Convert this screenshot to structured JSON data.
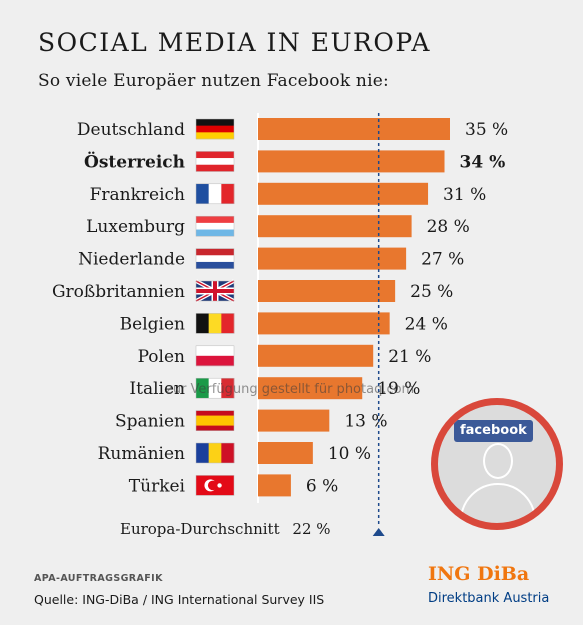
{
  "header": {
    "title": "SOCIAL MEDIA IN EUROPA",
    "subtitle": "So viele Europäer nutzen Facebook nie:"
  },
  "chart_data": {
    "type": "bar",
    "orientation": "horizontal",
    "title": "SOCIAL MEDIA IN EUROPA",
    "subtitle": "So viele Europäer nutzen Facebook nie:",
    "unit": "%",
    "xlim": [
      0,
      36
    ],
    "categories": [
      "Deutschland",
      "Österreich",
      "Frankreich",
      "Luxemburg",
      "Niederlande",
      "Großbritannien",
      "Belgien",
      "Polen",
      "Italien",
      "Spanien",
      "Rumänien",
      "Türkei"
    ],
    "values": [
      35,
      34,
      31,
      28,
      27,
      25,
      24,
      21,
      19,
      13,
      10,
      6
    ],
    "value_labels": [
      "35 %",
      "34 %",
      "31 %",
      "28 %",
      "27 %",
      "25 %",
      "24 %",
      "21 %",
      "19 %",
      "13 %",
      "10 %",
      "6 %"
    ],
    "flags": [
      "germany-flag",
      "austria-flag",
      "france-flag",
      "luxembourg-flag",
      "netherlands-flag",
      "uk-flag",
      "belgium-flag",
      "poland-flag",
      "italy-flag",
      "spain-flag",
      "romania-flag",
      "turkey-flag"
    ],
    "highlight": "Österreich",
    "reference_line": {
      "label": "Europa-Durchschnitt",
      "value": 22,
      "value_label": "22 %"
    },
    "bar_color": "#e8772e",
    "grid": false
  },
  "footer": {
    "graphic_tag": "APA-AUFTRAGSGRAFIK",
    "source": "Quelle: ING-DiBa / ING International Survey IIS",
    "logo_main": "ING DiBa",
    "logo_sub": "Direktbank Austria"
  },
  "badge": {
    "logo_text": "facebook",
    "logo_color": "#3b5998",
    "ring_color": "#d9483b"
  },
  "watermark": "zur Verfügung gestellt für photaq.com"
}
